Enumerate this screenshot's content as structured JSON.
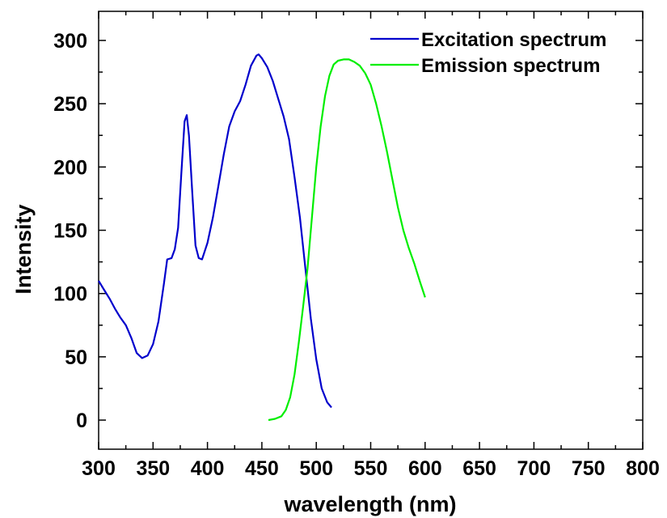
{
  "chart_data": {
    "type": "line",
    "title": "",
    "xlabel": "wavelength (nm)",
    "ylabel": "Intensity",
    "xlim": [
      300,
      800
    ],
    "ylim": [
      -23,
      323
    ],
    "x_ticks": [
      300,
      350,
      400,
      450,
      500,
      550,
      600,
      650,
      700,
      750,
      800
    ],
    "y_ticks": [
      0,
      50,
      100,
      150,
      200,
      250,
      300
    ],
    "x_tick_labels": [
      "300",
      "350",
      "400",
      "450",
      "500",
      "550",
      "600",
      "650",
      "700",
      "750",
      "800"
    ],
    "y_tick_labels": [
      "0",
      "50",
      "100",
      "150",
      "200",
      "250",
      "300"
    ],
    "grid": false,
    "legend_position": "top-right",
    "series": [
      {
        "name": "Excitation spectrum",
        "color": "#0000cc",
        "points": [
          [
            300,
            110
          ],
          [
            305,
            103
          ],
          [
            310,
            96
          ],
          [
            315,
            88
          ],
          [
            320,
            81
          ],
          [
            325,
            75
          ],
          [
            330,
            65
          ],
          [
            335,
            53
          ],
          [
            340,
            49
          ],
          [
            345,
            51
          ],
          [
            350,
            60
          ],
          [
            355,
            78
          ],
          [
            360,
            108
          ],
          [
            363,
            127
          ],
          [
            367,
            128
          ],
          [
            370,
            135
          ],
          [
            373,
            152
          ],
          [
            376,
            195
          ],
          [
            379,
            236
          ],
          [
            381,
            241
          ],
          [
            383,
            225
          ],
          [
            386,
            180
          ],
          [
            389,
            138
          ],
          [
            392,
            128
          ],
          [
            395,
            127
          ],
          [
            400,
            140
          ],
          [
            405,
            160
          ],
          [
            410,
            185
          ],
          [
            415,
            210
          ],
          [
            420,
            232
          ],
          [
            425,
            244
          ],
          [
            430,
            252
          ],
          [
            435,
            265
          ],
          [
            440,
            280
          ],
          [
            445,
            288
          ],
          [
            447,
            289
          ],
          [
            450,
            286
          ],
          [
            455,
            279
          ],
          [
            460,
            268
          ],
          [
            465,
            254
          ],
          [
            470,
            240
          ],
          [
            475,
            222
          ],
          [
            480,
            192
          ],
          [
            485,
            160
          ],
          [
            490,
            120
          ],
          [
            495,
            80
          ],
          [
            500,
            48
          ],
          [
            505,
            25
          ],
          [
            510,
            14
          ],
          [
            514,
            10
          ]
        ]
      },
      {
        "name": "Emission spectrum",
        "color": "#00ee00",
        "points": [
          [
            456,
            0
          ],
          [
            462,
            1
          ],
          [
            468,
            3
          ],
          [
            472,
            8
          ],
          [
            476,
            18
          ],
          [
            480,
            36
          ],
          [
            484,
            62
          ],
          [
            488,
            90
          ],
          [
            492,
            120
          ],
          [
            496,
            160
          ],
          [
            500,
            200
          ],
          [
            504,
            232
          ],
          [
            508,
            256
          ],
          [
            512,
            272
          ],
          [
            516,
            281
          ],
          [
            520,
            284
          ],
          [
            525,
            285
          ],
          [
            530,
            285
          ],
          [
            535,
            283
          ],
          [
            540,
            280
          ],
          [
            545,
            274
          ],
          [
            550,
            265
          ],
          [
            555,
            250
          ],
          [
            560,
            232
          ],
          [
            565,
            212
          ],
          [
            570,
            190
          ],
          [
            575,
            168
          ],
          [
            580,
            150
          ],
          [
            585,
            136
          ],
          [
            590,
            124
          ],
          [
            595,
            110
          ],
          [
            600,
            97
          ]
        ]
      }
    ]
  }
}
